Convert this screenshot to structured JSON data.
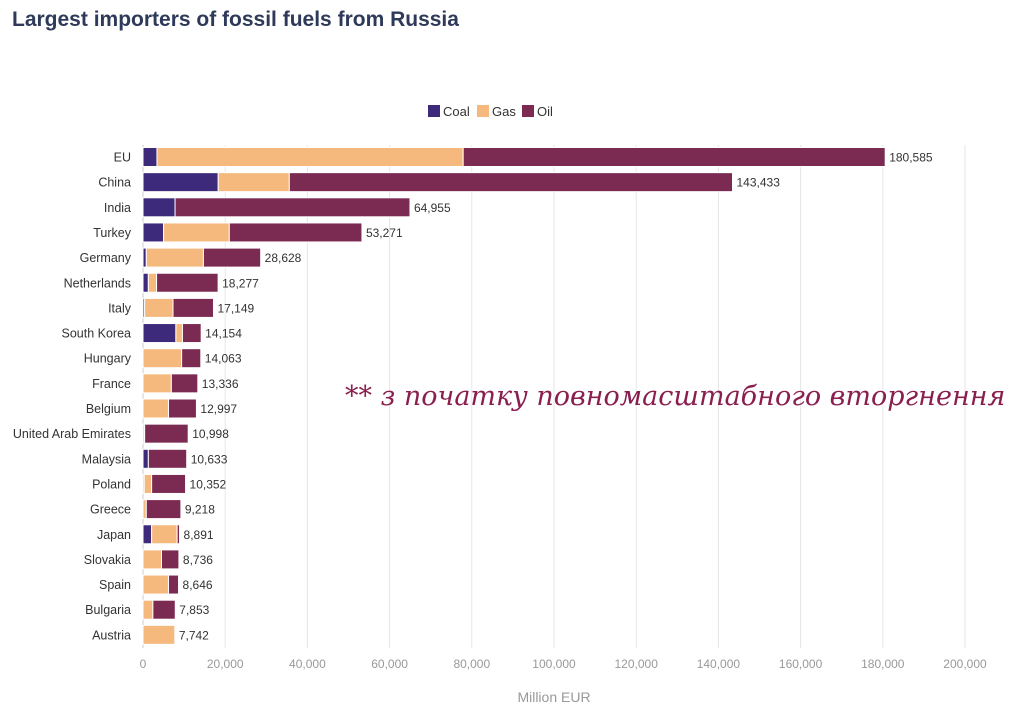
{
  "colors": {
    "coal": "#3d2a7a",
    "gas": "#f6b97d",
    "oil": "#7b2a52",
    "annotation": "#8a1f4f"
  },
  "chart_data": {
    "type": "bar",
    "orientation": "horizontal",
    "stacked": true,
    "title": "Largest importers of fossil fuels from Russia",
    "xlabel": "Million EUR",
    "ylabel": "",
    "xlim": [
      0,
      200000
    ],
    "xticks": [
      0,
      20000,
      40000,
      60000,
      80000,
      100000,
      120000,
      140000,
      160000,
      180000,
      200000
    ],
    "xtick_labels": [
      "0",
      "20,000",
      "40,000",
      "60,000",
      "80,000",
      "100,000",
      "120,000",
      "140,000",
      "160,000",
      "180,000",
      "200,000"
    ],
    "grid": "vertical",
    "legend_position": "top-center",
    "categories": [
      "EU",
      "China",
      "India",
      "Turkey",
      "Germany",
      "Netherlands",
      "Italy",
      "South Korea",
      "Hungary",
      "France",
      "Belgium",
      "United Arab Emirates",
      "Malaysia",
      "Poland",
      "Greece",
      "Japan",
      "Slovakia",
      "Spain",
      "Bulgaria",
      "Austria"
    ],
    "series": [
      {
        "name": "Coal",
        "values": [
          3400,
          18300,
          7800,
          5000,
          800,
          1300,
          400,
          8000,
          0,
          0,
          0,
          0,
          1300,
          300,
          0,
          2100,
          0,
          0,
          0,
          0
        ]
      },
      {
        "name": "Gas",
        "values": [
          74500,
          17300,
          0,
          16000,
          13900,
          2000,
          6900,
          1600,
          9400,
          6900,
          6200,
          400,
          0,
          1800,
          800,
          6200,
          4500,
          6200,
          2400,
          7742
        ]
      },
      {
        "name": "Oil",
        "values": [
          102685,
          107833,
          57155,
          32271,
          13928,
          14977,
          9849,
          4554,
          4663,
          6436,
          6797,
          10598,
          9333,
          8252,
          8418,
          591,
          4236,
          2446,
          5453,
          0
        ]
      }
    ],
    "totals": [
      180585,
      143433,
      64955,
      53271,
      28628,
      18277,
      17149,
      14154,
      14063,
      13336,
      12997,
      10998,
      10633,
      10352,
      9218,
      8891,
      8736,
      8646,
      7853,
      7742
    ],
    "total_labels": [
      "180,585",
      "143,433",
      "64,955",
      "53,271",
      "28,628",
      "18,277",
      "17,149",
      "14,154",
      "14,063",
      "13,336",
      "12,997",
      "10,998",
      "10,633",
      "10,352",
      "9,218",
      "8,891",
      "8,736",
      "8,646",
      "7,853",
      "7,742"
    ],
    "annotation": "** з початку повномасштабного вторгнення"
  }
}
